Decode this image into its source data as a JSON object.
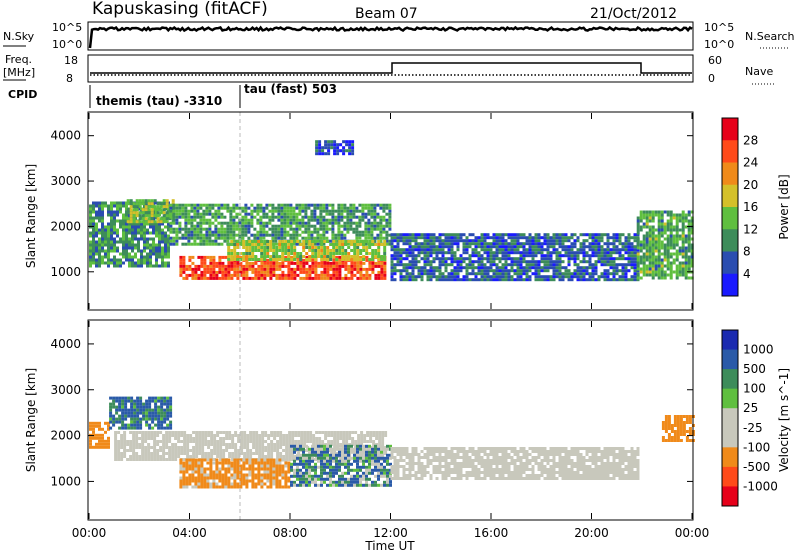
{
  "header": {
    "station": "Kapuskasing (fitACF)",
    "beam": "Beam 07",
    "date": "21/Oct/2012"
  },
  "strip_nsky": {
    "left_label": "N.Sky",
    "right_label": "N.Search",
    "left_ticks": [
      "10^5",
      "10^0"
    ],
    "right_ticks": [
      "10^5",
      "10^0"
    ]
  },
  "strip_freq": {
    "left_label": "Freq.",
    "left_unit": "[MHz]",
    "right_label": "Nave",
    "left_ticks": [
      "18",
      "8"
    ],
    "right_ticks": [
      "60",
      "0"
    ]
  },
  "strip_cpid": {
    "left_label": "CPID",
    "segments": [
      {
        "label": "themis (tau) -3310"
      },
      {
        "label": "tau (fast) 503"
      }
    ]
  },
  "colors": {
    "power_scale": [
      "#1a1aff",
      "#2a4db0",
      "#3d8c5a",
      "#5fbf3f",
      "#d4c02a",
      "#f08a1a",
      "#ff4a1a",
      "#e6001a"
    ],
    "velocity_scale": [
      "#e6001a",
      "#ff4a1a",
      "#f08a1a",
      "#c8c8bc",
      "#c8c8bc",
      "#5fbf3f",
      "#3d8c5a",
      "#2a5aa8",
      "#1a2ab0"
    ],
    "ground_scatter": "#c8c8bc"
  },
  "chart_data": [
    {
      "type": "heatmap",
      "name": "power",
      "ylabel": "Slant Range [km]",
      "colorbar_label": "Power [dB]",
      "colorbar_ticks": [
        "28",
        "24",
        "20",
        "16",
        "12",
        "8",
        "4"
      ],
      "x_ticks": [
        "00:00",
        "04:00",
        "08:00",
        "12:00",
        "16:00",
        "20:00",
        "00:00"
      ],
      "y_ticks": [
        "4000",
        "3000",
        "2000",
        "1000"
      ],
      "xlim_hours": [
        0,
        24
      ],
      "ylim_km": [
        180,
        4500
      ],
      "regions": [
        {
          "t": [
            0.0,
            3.2
          ],
          "range_km": [
            1100,
            2550
          ],
          "power_db": 10
        },
        {
          "t": [
            1.5,
            3.3
          ],
          "range_km": [
            2100,
            2600
          ],
          "power_db": 14
        },
        {
          "t": [
            3.2,
            12.0
          ],
          "range_km": [
            1600,
            2500
          ],
          "power_db": 11
        },
        {
          "t": [
            3.6,
            11.8
          ],
          "range_km": [
            880,
            1350
          ],
          "power_db": 26
        },
        {
          "t": [
            5.5,
            11.8
          ],
          "range_km": [
            1300,
            1700
          ],
          "power_db": 16
        },
        {
          "t": [
            12.0,
            21.8
          ],
          "range_km": [
            850,
            1850
          ],
          "power_db": 7
        },
        {
          "t": [
            21.8,
            24.0
          ],
          "range_km": [
            880,
            2350
          ],
          "power_db": 12
        },
        {
          "t": [
            9.0,
            10.5
          ],
          "range_km": [
            3600,
            3900
          ],
          "power_db": 5
        }
      ]
    },
    {
      "type": "heatmap",
      "name": "velocity",
      "ylabel": "Slant Range [km]",
      "xlabel": "Time UT",
      "colorbar_label": "Velocity [m s^-1]",
      "colorbar_ticks": [
        "1000",
        "500",
        "100",
        "25",
        "-25",
        "-100",
        "-500",
        "-1000"
      ],
      "x_ticks": [
        "00:00",
        "04:00",
        "08:00",
        "12:00",
        "16:00",
        "20:00",
        "00:00"
      ],
      "y_ticks": [
        "4000",
        "3000",
        "2000",
        "1000"
      ],
      "xlim_hours": [
        0,
        24
      ],
      "ylim_km": [
        180,
        4500
      ],
      "regions": [
        {
          "t": [
            0.0,
            0.8
          ],
          "range_km": [
            1750,
            2300
          ],
          "velocity_ms": -300
        },
        {
          "t": [
            0.8,
            3.2
          ],
          "range_km": [
            2150,
            2850
          ],
          "velocity_ms": 150
        },
        {
          "t": [
            1.0,
            11.8
          ],
          "range_km": [
            1500,
            2100
          ],
          "velocity_ms": 0
        },
        {
          "t": [
            3.6,
            8.0
          ],
          "range_km": [
            900,
            1500
          ],
          "velocity_ms": -200
        },
        {
          "t": [
            8.0,
            12.0
          ],
          "range_km": [
            900,
            1800
          ],
          "velocity_ms": 80
        },
        {
          "t": [
            12.0,
            21.8
          ],
          "range_km": [
            1050,
            1750
          ],
          "velocity_ms": 0
        },
        {
          "t": [
            22.8,
            24.0
          ],
          "range_km": [
            1900,
            2450
          ],
          "velocity_ms": -300
        }
      ]
    }
  ],
  "axes": {
    "xlabel": "Time UT"
  }
}
